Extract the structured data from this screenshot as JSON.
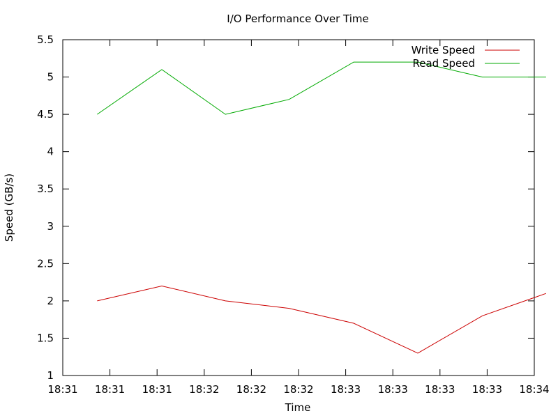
{
  "chart_data": {
    "type": "line",
    "title": "I/O Performance Over Time",
    "xlabel": "Time",
    "ylabel": "Speed (GB/s)",
    "x_ticks": [
      "18:31",
      "18:31",
      "18:31",
      "18:32",
      "18:32",
      "18:32",
      "18:33",
      "18:33",
      "18:33",
      "18:33",
      "18:34"
    ],
    "ylim": [
      1,
      5.5
    ],
    "y_ticks": [
      "1",
      "1.5",
      "2",
      "2.5",
      "3",
      "3.5",
      "4",
      "4.5",
      "5",
      "5.5"
    ],
    "x": [
      0.73,
      2.1,
      3.45,
      4.8,
      6.17,
      7.53,
      8.9,
      10.25
    ],
    "legend_position": "top-right",
    "grid": false,
    "series": [
      {
        "name": "Write Speed",
        "color": "#cc0000",
        "values": [
          2.0,
          2.2,
          2.0,
          1.9,
          1.7,
          1.3,
          1.8,
          2.1
        ]
      },
      {
        "name": "Read Speed",
        "color": "#00aa00",
        "values": [
          4.5,
          5.1,
          4.5,
          4.7,
          5.2,
          5.2,
          5.0,
          5.0
        ]
      }
    ]
  }
}
